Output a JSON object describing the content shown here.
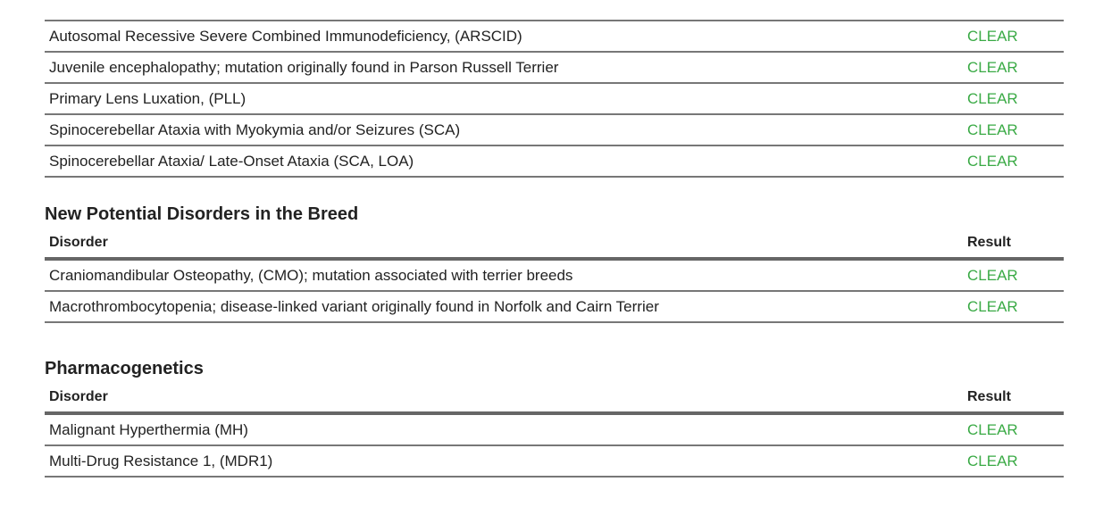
{
  "sections": [
    {
      "rows": [
        {
          "disorder": "Autosomal Recessive Severe Combined Immunodeficiency, (ARSCID)",
          "result": "CLEAR"
        },
        {
          "disorder": "Juvenile encephalopathy; mutation originally found in Parson Russell Terrier",
          "result": "CLEAR"
        },
        {
          "disorder": "Primary Lens Luxation, (PLL)",
          "result": "CLEAR"
        },
        {
          "disorder": "Spinocerebellar Ataxia with Myokymia and/or Seizures (SCA)",
          "result": "CLEAR"
        },
        {
          "disorder": "Spinocerebellar Ataxia/ Late-Onset Ataxia (SCA, LOA)",
          "result": "CLEAR"
        }
      ]
    },
    {
      "title": "New Potential Disorders in the Breed",
      "col_disorder": "Disorder",
      "col_result": "Result",
      "rows": [
        {
          "disorder": "Craniomandibular Osteopathy, (CMO); mutation associated with terrier breeds",
          "result": "CLEAR"
        },
        {
          "disorder": "Macrothrombocytopenia; disease-linked variant originally found in Norfolk and Cairn Terrier",
          "result": "CLEAR"
        }
      ]
    },
    {
      "title": "Pharmacogenetics",
      "col_disorder": "Disorder",
      "col_result": "Result",
      "rows": [
        {
          "disorder": "Malignant Hyperthermia (MH)",
          "result": "CLEAR"
        },
        {
          "disorder": "Multi-Drug Resistance 1, (MDR1)",
          "result": "CLEAR"
        }
      ]
    }
  ],
  "colors": {
    "clear": "#3aaa45"
  }
}
